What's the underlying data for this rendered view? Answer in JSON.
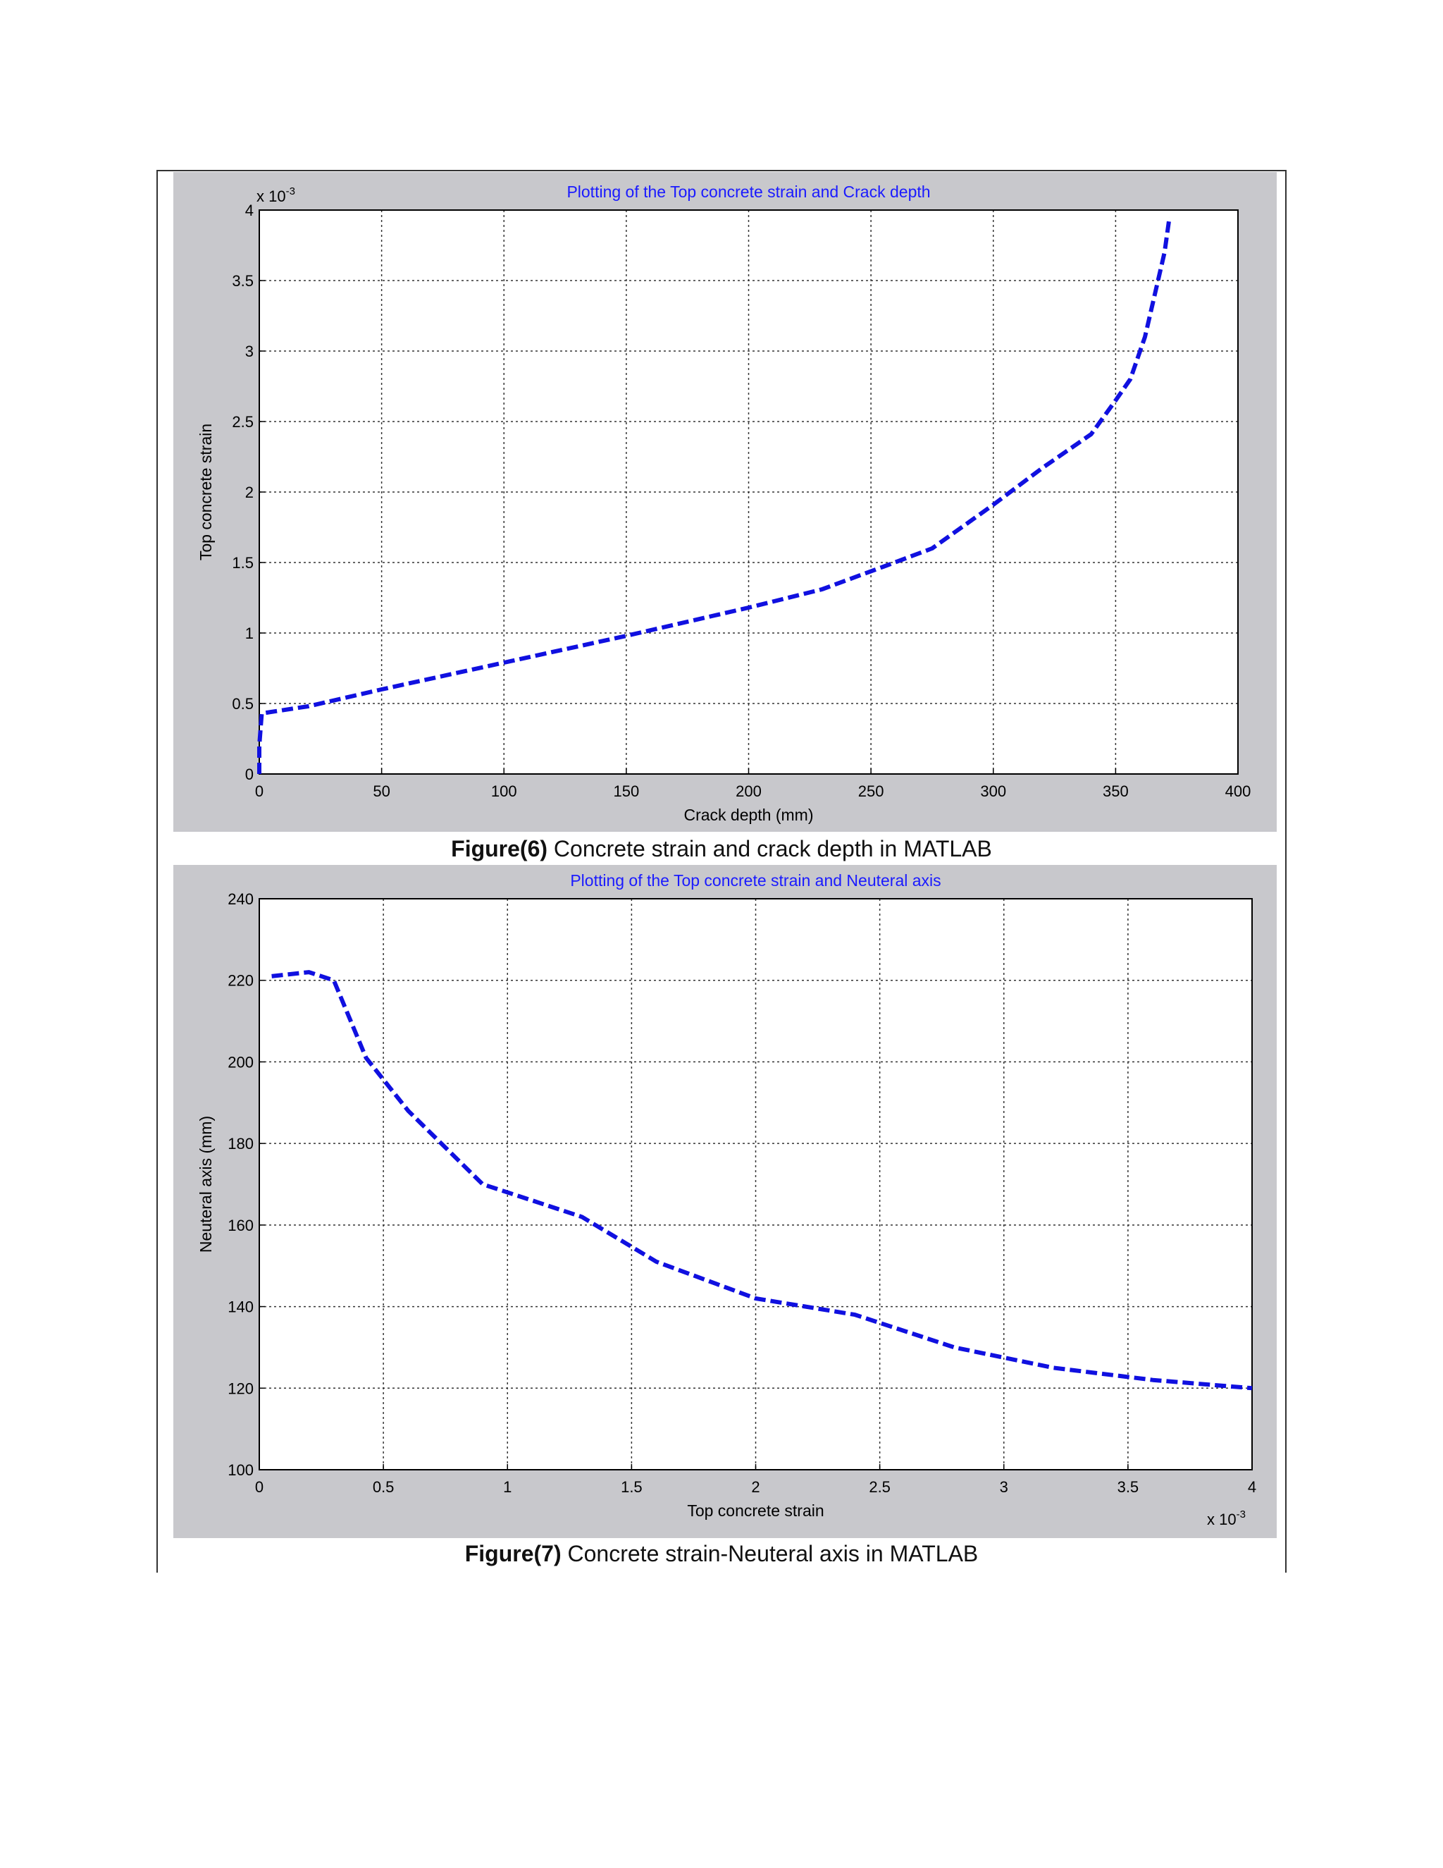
{
  "colors": {
    "figure_bg": "#c8c8cc",
    "axes_bg": "#ffffff",
    "line": "#1010e0",
    "title": "#1a1aff",
    "grid": "#333333"
  },
  "figures": [
    {
      "caption_prefix": "Figure(6)",
      "caption_text": " Concrete strain and crack depth in MATLAB"
    },
    {
      "caption_prefix": "Figure(7)",
      "caption_text": " Concrete strain-Neuteral axis in MATLAB"
    }
  ],
  "chart_data": [
    {
      "type": "line",
      "title": "Plotting of the Top concrete strain and Crack depth",
      "xlabel": "Crack depth (mm)",
      "ylabel": "Top concrete strain",
      "xlim": [
        0,
        400
      ],
      "ylim": [
        0,
        4
      ],
      "y_multiplier": "x 10",
      "y_multiplier_exp": "-3",
      "xticks": [
        "0",
        "50",
        "100",
        "150",
        "200",
        "250",
        "300",
        "350",
        "400"
      ],
      "yticks": [
        "0",
        "0.5",
        "1",
        "1.5",
        "2",
        "2.5",
        "3",
        "3.5",
        "4"
      ],
      "grid": true,
      "line_style": "dashed",
      "series": [
        {
          "x": [
            0,
            0,
            1,
            20,
            50,
            100,
            150,
            200,
            230,
            255,
            275,
            300,
            320,
            340,
            350,
            356,
            362,
            366,
            370,
            372
          ],
          "y": [
            0,
            0.2,
            0.43,
            0.48,
            0.6,
            0.79,
            0.98,
            1.18,
            1.31,
            1.47,
            1.6,
            1.91,
            2.17,
            2.41,
            2.65,
            2.8,
            3.1,
            3.4,
            3.7,
            3.95
          ]
        }
      ]
    },
    {
      "type": "line",
      "title": "Plotting of the Top concrete strain and Neuteral axis",
      "xlabel": "Top concrete strain",
      "ylabel": "Neuteral axis (mm)",
      "xlim": [
        0,
        4
      ],
      "ylim": [
        100,
        240
      ],
      "x_multiplier": "x 10",
      "x_multiplier_exp": "-3",
      "xticks": [
        "0",
        "0.5",
        "1",
        "1.5",
        "2",
        "2.5",
        "3",
        "3.5",
        "4"
      ],
      "yticks": [
        "100",
        "120",
        "140",
        "160",
        "180",
        "200",
        "220",
        "240"
      ],
      "grid": true,
      "line_style": "dashed",
      "series": [
        {
          "x": [
            0.05,
            0.2,
            0.3,
            0.43,
            0.6,
            0.9,
            1.1,
            1.3,
            1.6,
            2.0,
            2.4,
            2.8,
            3.2,
            3.6,
            4.0
          ],
          "y": [
            221,
            222,
            220,
            201,
            188,
            170,
            166,
            162,
            151,
            142,
            138,
            130,
            125,
            122,
            120
          ]
        }
      ]
    }
  ]
}
